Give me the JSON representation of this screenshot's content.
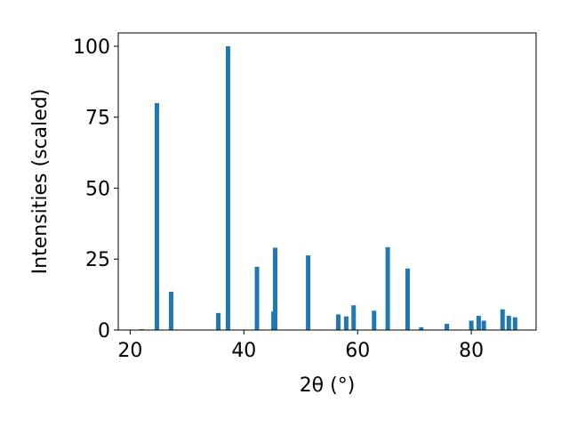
{
  "chart_data": {
    "type": "bar",
    "xlabel": "2θ (°)",
    "ylabel": "Intensities (scaled)",
    "x": [
      22.0,
      24.7,
      27.2,
      35.5,
      37.2,
      42.3,
      45.2,
      45.5,
      51.3,
      56.6,
      58.0,
      59.3,
      62.9,
      65.3,
      68.8,
      71.2,
      75.7,
      80.0,
      81.3,
      82.2,
      85.5,
      86.6,
      87.7
    ],
    "values": [
      0.3,
      80,
      13.5,
      6,
      100,
      22.3,
      6.5,
      29,
      26.3,
      5.5,
      4.8,
      8.7,
      6.8,
      29.2,
      21.7,
      1,
      2.2,
      3.3,
      5,
      3.3,
      7.3,
      5,
      4.5
    ],
    "color": "#1f77b4",
    "xlim": [
      17.9,
      91.4
    ],
    "xticks": [
      20,
      40,
      60,
      80
    ],
    "ylim": [
      0,
      104.7
    ],
    "yticks": [
      0,
      25,
      50,
      75,
      100
    ]
  }
}
